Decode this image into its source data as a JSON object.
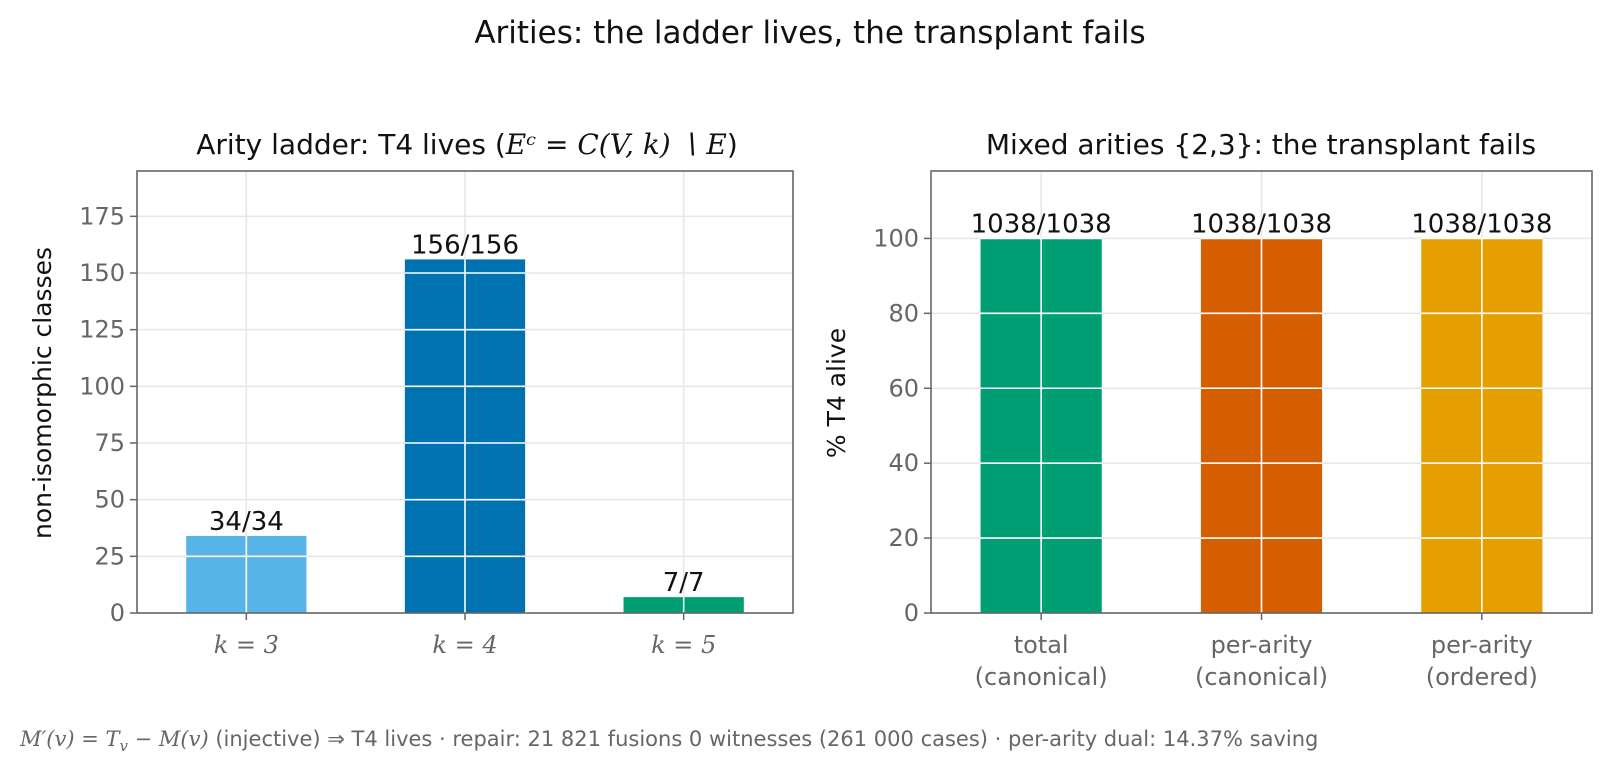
{
  "figure": {
    "suptitle": "Arities: the ladder lives, the transplant fails",
    "footer": {
      "math_prefix": "M′(v) = T",
      "math_sub": "v",
      "math_suffix": " − M(v)",
      "text": " (injective)  ⇒  T4 lives  ·  repair: 21 821 fusions  0 witnesses (261 000 cases)  ·  per-arity dual: 14.37% saving"
    }
  },
  "chart_data": [
    {
      "type": "bar",
      "title": "Arity ladder: T4 lives (",
      "title_math": "Eᶜ = C(V, k) ∖ E",
      "title_close": ")",
      "ylabel": "non-isomorphic classes",
      "xlabel": "",
      "categories": [
        "k = 3",
        "k = 4",
        "k = 5"
      ],
      "values": [
        34,
        156,
        7
      ],
      "data_labels": [
        "34/34",
        "156/156",
        "7/7"
      ],
      "colors": [
        "#56B4E9",
        "#0072B2",
        "#009E73"
      ],
      "ylim": [
        0,
        195
      ],
      "yticks": [
        0,
        25,
        50,
        75,
        100,
        125,
        150,
        175
      ],
      "grid": true
    },
    {
      "type": "bar",
      "title": "Mixed arities {2,3}: the transplant fails",
      "ylabel": "% T4 alive",
      "xlabel": "",
      "categories": [
        [
          "total",
          "(canonical)"
        ],
        [
          "per-arity",
          "(canonical)"
        ],
        [
          "per-arity",
          "(ordered)"
        ]
      ],
      "values": [
        100,
        100,
        100
      ],
      "data_labels": [
        "1038/1038",
        "1038/1038",
        "1038/1038"
      ],
      "colors": [
        "#009E73",
        "#D55E00",
        "#E69F00"
      ],
      "ylim": [
        0,
        118
      ],
      "yticks": [
        0,
        20,
        40,
        60,
        80,
        100
      ],
      "grid": true
    }
  ]
}
